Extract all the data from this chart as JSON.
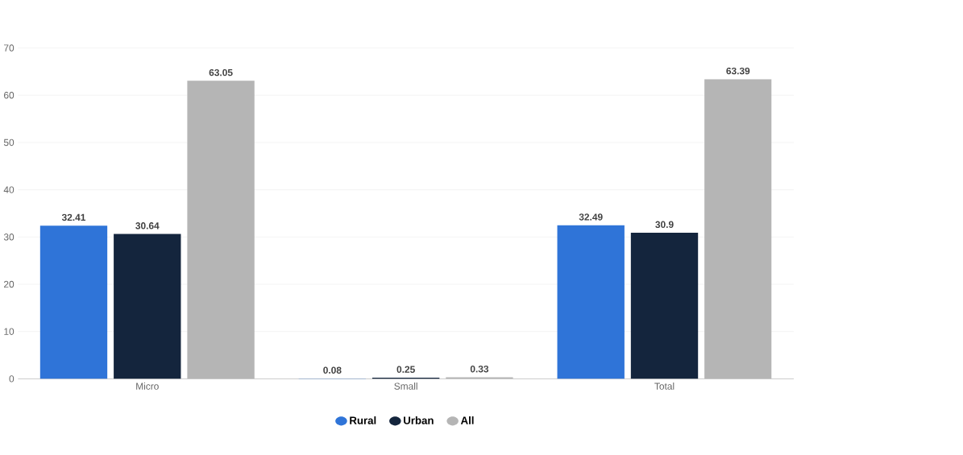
{
  "chart_data": {
    "type": "bar",
    "categories": [
      "Micro",
      "Small",
      "Total"
    ],
    "series": [
      {
        "name": "Rural",
        "color": "#2f74d8",
        "values": [
          32.41,
          0.08,
          32.49
        ]
      },
      {
        "name": "Urban",
        "color": "#14253d",
        "values": [
          30.64,
          0.25,
          30.9
        ]
      },
      {
        "name": "All",
        "color": "#b5b5b5",
        "values": [
          63.05,
          0.33,
          63.39
        ]
      }
    ],
    "ylim": [
      0,
      70
    ],
    "yticks": [
      0,
      10,
      20,
      30,
      40,
      50,
      60,
      70
    ],
    "grid": "y",
    "legend": "bottom",
    "data_labels": true
  }
}
